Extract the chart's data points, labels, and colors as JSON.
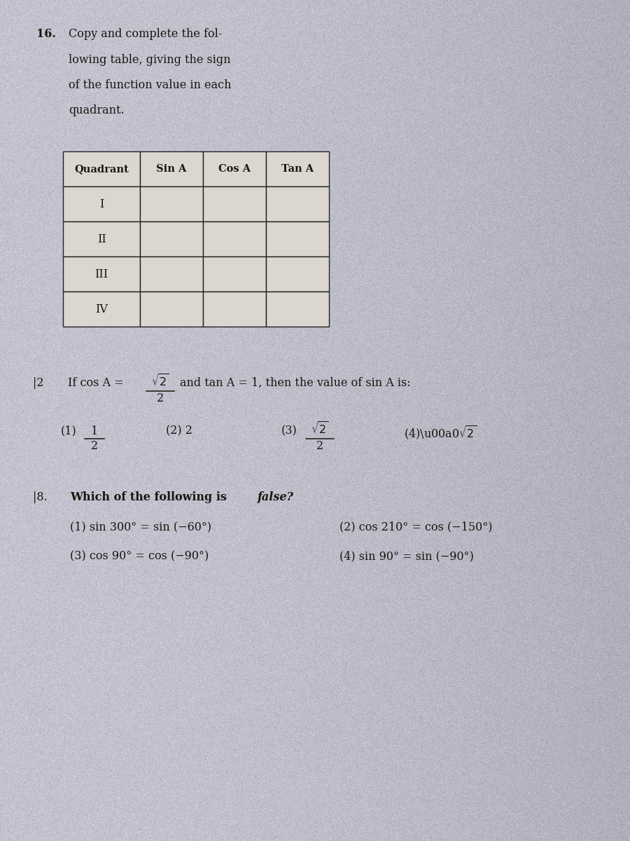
{
  "bg_color_light": "#d4d0cc",
  "bg_color_dark": "#b8b4b0",
  "text_color": "#1a1510",
  "table_cell_color": "#dedad4",
  "table_border_color": "#2a2520",
  "q16_number": "16.",
  "q16_lines": [
    "Copy and complete the fol-",
    "lowing table, giving the sign",
    "of the function value in each",
    "quadrant."
  ],
  "table_headers": [
    "Quadrant",
    "Sin A",
    "Cos A",
    "Tan A"
  ],
  "table_rows": [
    "I",
    "II",
    "III",
    "IV"
  ],
  "q18_opt1_left": "(1) sin 300° = sin (−60°)",
  "q18_opt2_right": "(2) cos 210° = cos (−150°)",
  "q18_opt3_left": "(3) cos 90° = cos (−90°)",
  "q18_opt4_right": "(4) sin 90° = sin (−90°)"
}
